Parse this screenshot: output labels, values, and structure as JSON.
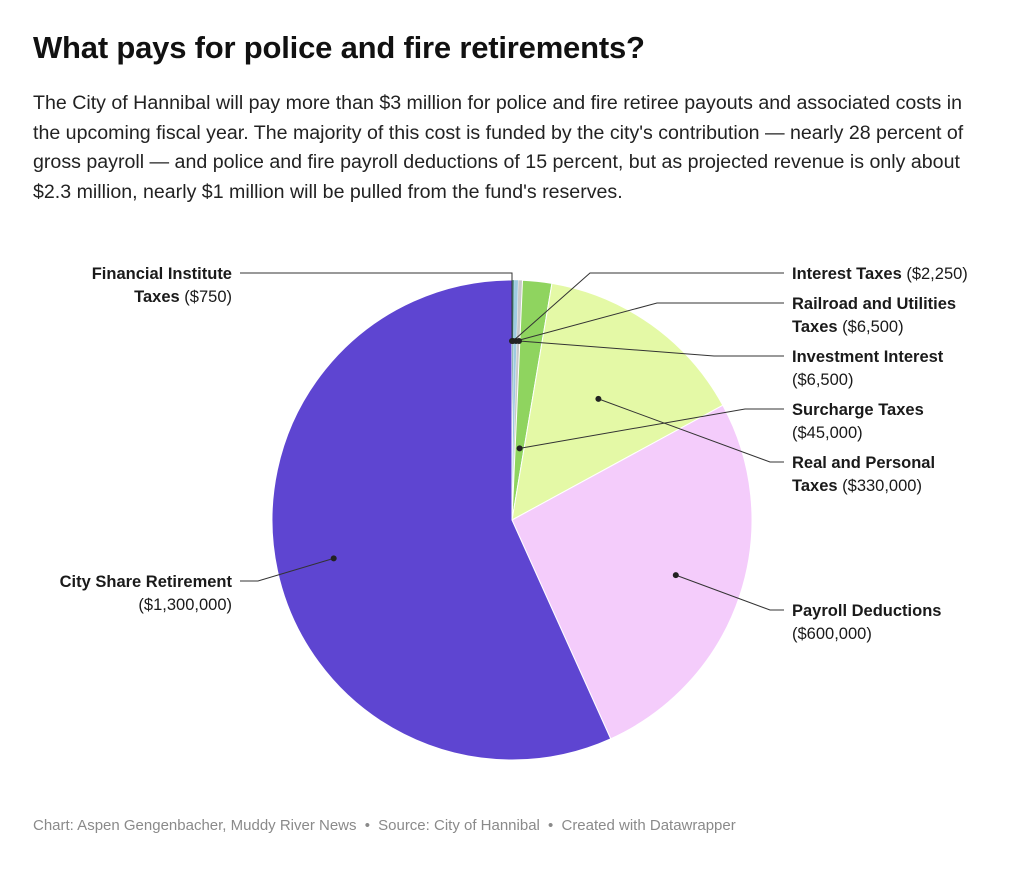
{
  "title": "What pays for police and fire retirements?",
  "description": "The City of Hannibal will pay more than $3 million for police and fire retiree payouts and associated costs in the upcoming fiscal year. The majority of this cost is funded by the city's contribution — nearly 28 percent of gross payroll — and police and fire payroll deductions of 15 percent, but as projected revenue is only about $2.3 million, nearly $1 million will be pulled from the fund's reserves.",
  "footer": {
    "credit": "Chart: Aspen Gengenbacher, Muddy River News",
    "source": "Source: City of Hannibal",
    "tool": "Created with Datawrapper",
    "separator": "•"
  },
  "chart_data": {
    "type": "pie",
    "start": "12 o'clock, clockwise",
    "slices": [
      {
        "label": "Financial Institute Taxes",
        "value": 750,
        "value_label": "($750)",
        "color": "#1b3f8c",
        "label_lines": [
          "Financial Institute",
          "Taxes"
        ],
        "side": "left"
      },
      {
        "label": "Interest Taxes",
        "value": 2250,
        "value_label": "($2,250)",
        "color": "#0f6b5e",
        "label_lines": [
          "Interest Taxes"
        ],
        "side": "right"
      },
      {
        "label": "Railroad and Utilities Taxes",
        "value": 6500,
        "value_label": "($6,500)",
        "color": "#9ecae1",
        "label_lines": [
          "Railroad and Utilities",
          "Taxes"
        ],
        "side": "right"
      },
      {
        "label": "Investment Interest",
        "value": 6500,
        "value_label": "($6,500)",
        "color": "#c9c9c9",
        "label_lines": [
          "Investment Interest"
        ],
        "side": "right"
      },
      {
        "label": "Surcharge Taxes",
        "value": 45000,
        "value_label": "($45,000)",
        "color": "#8fd45f",
        "label_lines": [
          "Surcharge Taxes"
        ],
        "side": "right"
      },
      {
        "label": "Real and Personal Taxes",
        "value": 330000,
        "value_label": "($330,000)",
        "color": "#e4f9a6",
        "label_lines": [
          "Real and Personal",
          "Taxes"
        ],
        "side": "right"
      },
      {
        "label": "Payroll Deductions",
        "value": 600000,
        "value_label": "($600,000)",
        "color": "#f4ccfb",
        "label_lines": [
          "Payroll Deductions"
        ],
        "side": "right"
      },
      {
        "label": "City Share Retirement",
        "value": 1300000,
        "value_label": "($1,300,000)",
        "color": "#5e45d1",
        "label_lines": [
          "City Share Retirement"
        ],
        "side": "left"
      }
    ]
  }
}
